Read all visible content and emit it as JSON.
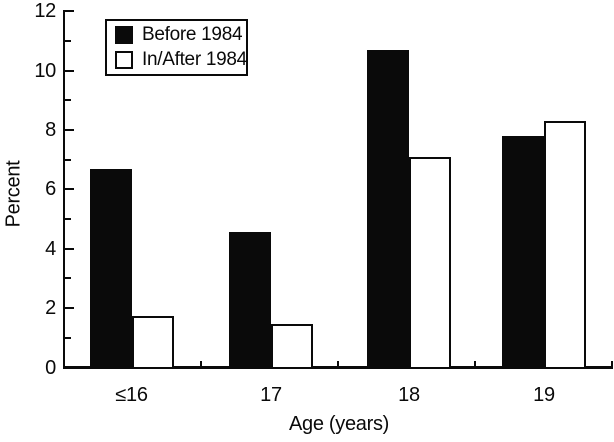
{
  "chart_data": {
    "type": "bar",
    "title": "",
    "xlabel": "Age (years)",
    "ylabel": "Percent",
    "categories": [
      "≤16",
      "17",
      "18",
      "19"
    ],
    "series": [
      {
        "name": "Before 1984",
        "color": "#0a0a0a",
        "fill": "filled",
        "values": [
          6.7,
          4.55,
          10.7,
          7.8
        ]
      },
      {
        "name": "In/After 1984",
        "color": "#ffffff",
        "fill": "open",
        "values": [
          1.75,
          1.45,
          7.1,
          8.3
        ]
      }
    ],
    "ylim": [
      0,
      12
    ],
    "y_major_ticks": [
      0,
      2,
      4,
      6,
      8,
      10,
      12
    ],
    "y_minor_step": 1,
    "grid": false,
    "legend_position": "top-left",
    "bar_colors": {
      "before": "#0a0a0a",
      "after": "#ffffff"
    }
  }
}
